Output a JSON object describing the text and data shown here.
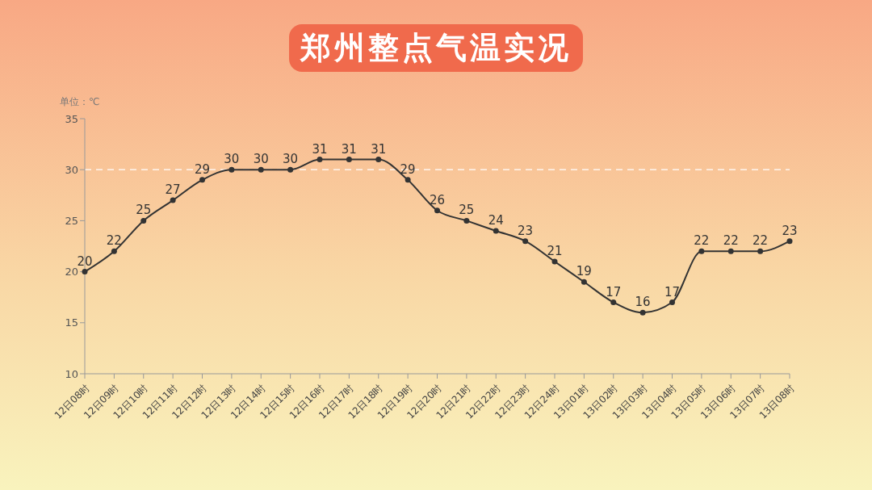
{
  "chart_data": {
    "type": "line",
    "title": "郑州整点气温实况",
    "ylabel": "单位：℃",
    "categories": [
      "12日08时",
      "12日09时",
      "12日10时",
      "12日11时",
      "12日12时",
      "12日13时",
      "12日14时",
      "12日15时",
      "12日16时",
      "12日17时",
      "12日18时",
      "12日19时",
      "12日20时",
      "12日21时",
      "12日22时",
      "12日23时",
      "12日24时",
      "13日01时",
      "13日02时",
      "13日03时",
      "13日04时",
      "13日05时",
      "13日06时",
      "13日07时",
      "13日08时"
    ],
    "series": [
      {
        "color": "#333333",
        "values": [
          20,
          22,
          25,
          27,
          29,
          30,
          30,
          30,
          31,
          31,
          31,
          29,
          26,
          25,
          24,
          23,
          21,
          19,
          17,
          16,
          17,
          22,
          22,
          22,
          23
        ]
      }
    ],
    "ylim": [
      10,
      35
    ],
    "yticks": [
      10,
      15,
      20,
      25,
      30,
      35
    ],
    "ref_lines": [
      {
        "axis": "y",
        "value": 30,
        "color": "#ffffff",
        "line_style": "dashed"
      }
    ],
    "grid": false,
    "legend": false,
    "marker": "circle",
    "line_style": "solid",
    "data_labels": true
  }
}
